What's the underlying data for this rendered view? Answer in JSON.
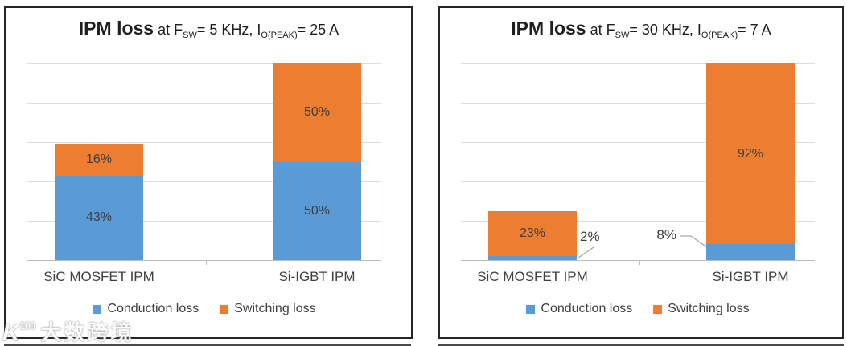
{
  "colors": {
    "conduction_blue": "#5B9BD5",
    "switching_orange": "#ED7D31",
    "gridline": "#DCDCDC",
    "axis_line": "#BDBDBD",
    "label_text": "#404040",
    "title_text": "#1F1F1F",
    "panel_border": "#262626",
    "leader_line": "#A6A6A6"
  },
  "watermark": {
    "logo_main": "K",
    "logo_sup": "100",
    "text": "大数跨境"
  },
  "chart_data": [
    {
      "type": "bar",
      "stacked": true,
      "title": "IPM loss at FSW= 5 KHz, IO(PEAK)= 25 A",
      "title_parts": [
        {
          "text": "IPM loss",
          "style": "bold"
        },
        {
          "text": " at F",
          "style": "normal"
        },
        {
          "text": "SW",
          "style": "sub"
        },
        {
          "text": "= 5 KHz, I",
          "style": "normal"
        },
        {
          "text": "O(PEAK)",
          "style": "sub"
        },
        {
          "text": "= 25 A",
          "style": "normal"
        }
      ],
      "categories": [
        "SiC MOSFET IPM",
        "Si-IGBT IPM"
      ],
      "series": [
        {
          "name": "Conduction loss",
          "color": "#5B9BD5",
          "values": [
            43,
            50
          ],
          "labels": [
            "43%",
            "50%"
          ],
          "label_placements": [
            "inside",
            "inside"
          ]
        },
        {
          "name": "Switching loss",
          "color": "#ED7D31",
          "values": [
            16,
            50
          ],
          "labels": [
            "16%",
            "50%"
          ],
          "label_placements": [
            "inside",
            "inside"
          ]
        }
      ],
      "xlabel": "",
      "ylabel": "",
      "ylim": [
        0,
        100
      ],
      "units": "%",
      "gridlines_pct": [
        20,
        40,
        60,
        80,
        100
      ],
      "grid": true,
      "legend_position": "bottom"
    },
    {
      "type": "bar",
      "stacked": true,
      "title": "IPM loss at FSW= 30 KHz, IO(PEAK)= 7 A",
      "title_parts": [
        {
          "text": "IPM loss",
          "style": "bold"
        },
        {
          "text": " at F",
          "style": "normal"
        },
        {
          "text": "SW",
          "style": "sub"
        },
        {
          "text": "= 30 KHz, I",
          "style": "normal"
        },
        {
          "text": "O(PEAK)",
          "style": "sub"
        },
        {
          "text": "= 7 A",
          "style": "normal"
        }
      ],
      "categories": [
        "SiC MOSFET IPM",
        "Si-IGBT IPM"
      ],
      "series": [
        {
          "name": "Conduction loss",
          "color": "#5B9BD5",
          "values": [
            2,
            8
          ],
          "labels": [
            "2%",
            "8%"
          ],
          "label_placements": [
            "callout-right",
            "callout-left"
          ]
        },
        {
          "name": "Switching loss",
          "color": "#ED7D31",
          "values": [
            23,
            92
          ],
          "labels": [
            "23%",
            "92%"
          ],
          "label_placements": [
            "inside",
            "inside"
          ]
        }
      ],
      "xlabel": "",
      "ylabel": "",
      "ylim": [
        0,
        100
      ],
      "units": "%",
      "gridlines_pct": [
        20,
        40,
        60,
        80,
        100
      ],
      "grid": true,
      "legend_position": "bottom"
    }
  ]
}
